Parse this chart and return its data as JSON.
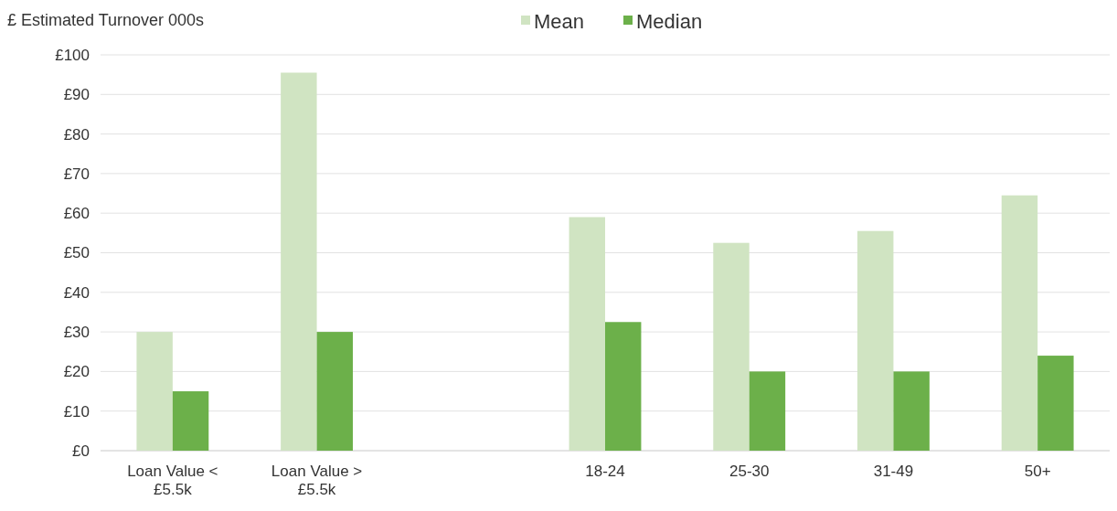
{
  "chart_data": {
    "type": "bar",
    "ylabel": "£ Estimated Turnover 000s",
    "categories": [
      "Loan Value < £5.5k",
      "Loan Value > £5.5k",
      null,
      "18-24",
      "25-30",
      "31-49",
      "50+"
    ],
    "series": [
      {
        "name": "Mean",
        "color": "#d0e4c2",
        "values": [
          30,
          95.5,
          null,
          59,
          52.5,
          55.5,
          64.5
        ]
      },
      {
        "name": "Median",
        "color": "#6cb04a",
        "values": [
          15,
          30,
          null,
          32.5,
          20,
          20,
          24
        ]
      }
    ],
    "ylim": [
      0,
      100
    ],
    "yticks": [
      {
        "value": 0,
        "label": "£0"
      },
      {
        "value": 10,
        "label": "£10"
      },
      {
        "value": 20,
        "label": "£20"
      },
      {
        "value": 30,
        "label": "£30"
      },
      {
        "value": 40,
        "label": "£40"
      },
      {
        "value": 50,
        "label": "£50"
      },
      {
        "value": 60,
        "label": "£60"
      },
      {
        "value": 70,
        "label": "£70"
      },
      {
        "value": 80,
        "label": "£80"
      },
      {
        "value": 90,
        "label": "£90"
      },
      {
        "value": 100,
        "label": "£100"
      }
    ],
    "grid": "y",
    "legend": "top"
  }
}
